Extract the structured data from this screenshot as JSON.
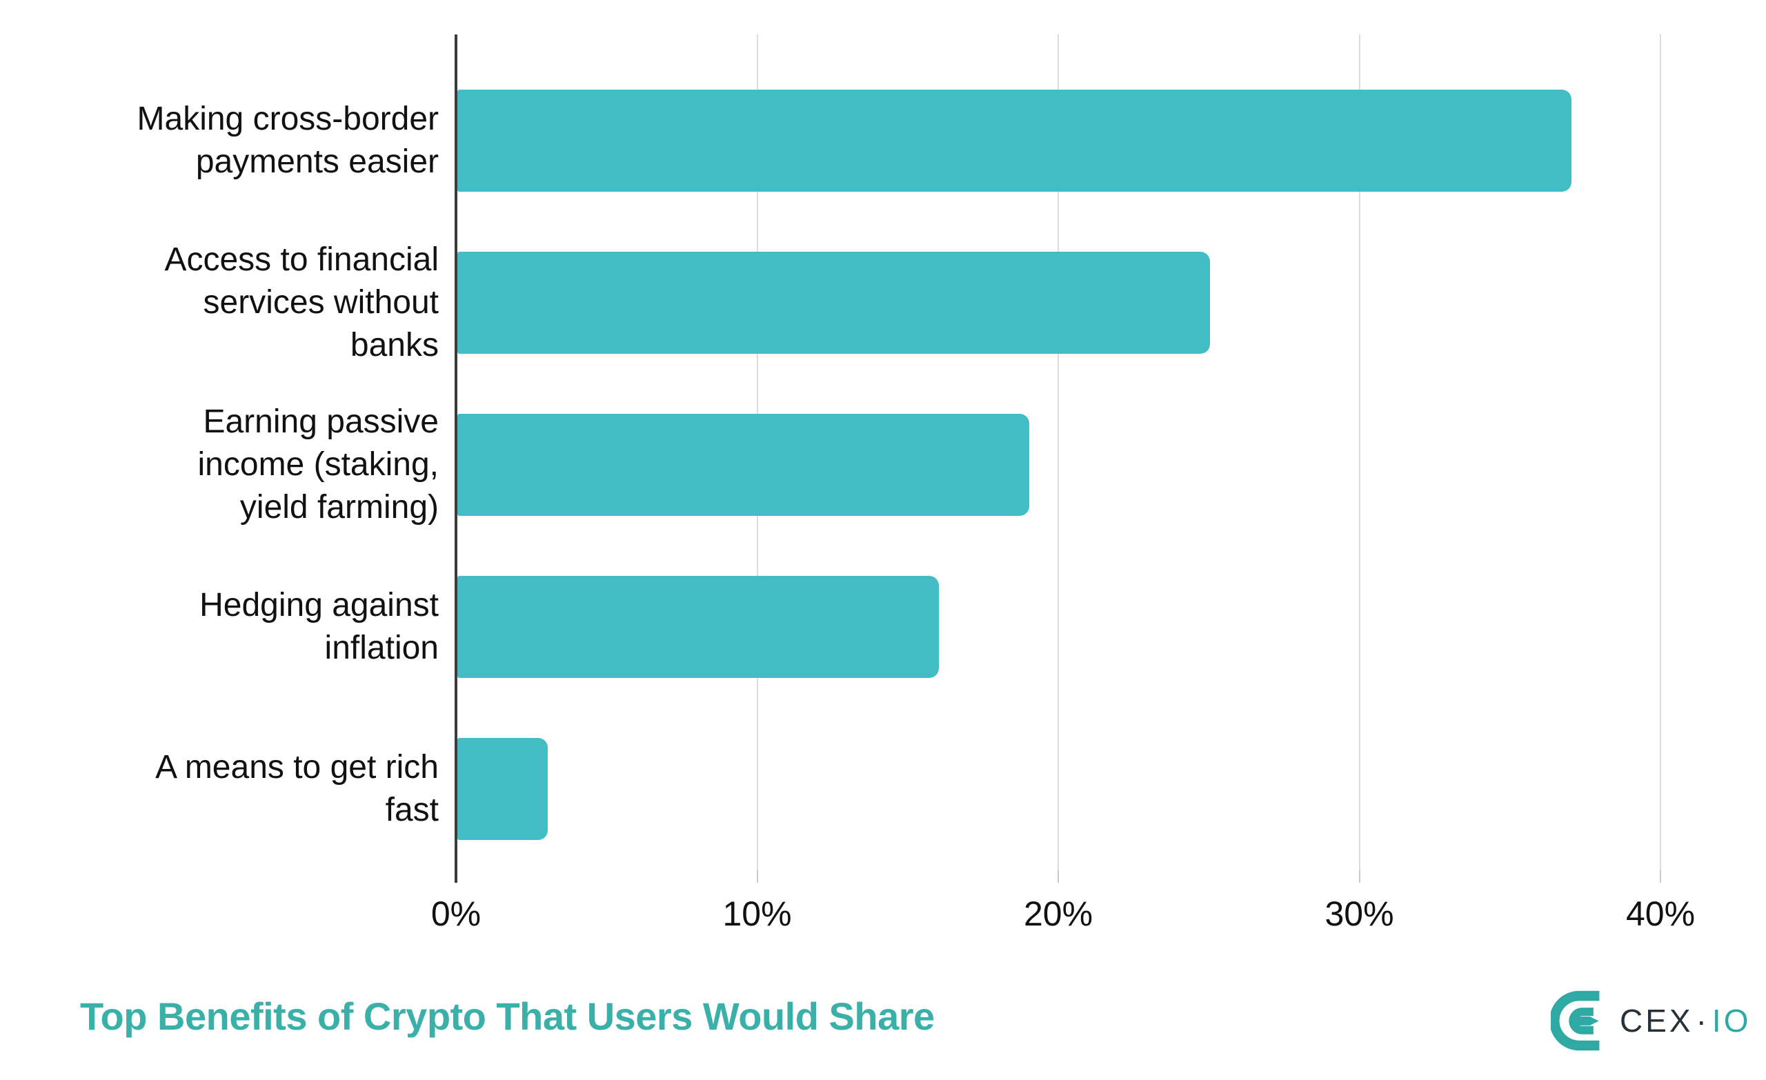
{
  "chart_data": {
    "type": "bar",
    "orientation": "horizontal",
    "title": "Top Benefits of Crypto That Users Would Share",
    "categories": [
      "Making cross-border payments easier",
      "Access to financial services without banks",
      "Earning passive income (staking, yield farming)",
      "Hedging against inflation",
      "A means to get rich fast"
    ],
    "category_wrapped_lines": [
      [
        "Making cross-border",
        "payments easier"
      ],
      [
        "Access to financial",
        "services without",
        "banks"
      ],
      [
        "Earning passive",
        "income (staking,",
        "yield farming)"
      ],
      [
        "Hedging against",
        "inflation"
      ],
      [
        "A means to get rich",
        "fast"
      ]
    ],
    "values": [
      37,
      25,
      19,
      16,
      3
    ],
    "unit": "%",
    "xlabel": "",
    "ylabel": "",
    "xlim": [
      0,
      40
    ],
    "x_ticks": [
      0,
      10,
      20,
      30,
      40
    ],
    "x_tick_labels": [
      "0%",
      "10%",
      "20%",
      "30%",
      "40%"
    ],
    "grid": "vertical-gridlines-only",
    "legend": "none",
    "bar_color": "#42BCC5"
  },
  "title": {
    "text": "Top Benefits of Crypto That Users Would Share",
    "color": "#3BB0A9"
  },
  "logo": {
    "brand_dark": "CEX",
    "separator": "·",
    "brand_teal": "IO",
    "teal_color": "#2FA9A3",
    "dark_color": "#263238"
  },
  "colors": {
    "bar": "#42BCC5",
    "gridline": "#dcdcdc",
    "axis": "#3b3b3b",
    "label_text": "#111111",
    "title_text": "#3BB0A9"
  }
}
